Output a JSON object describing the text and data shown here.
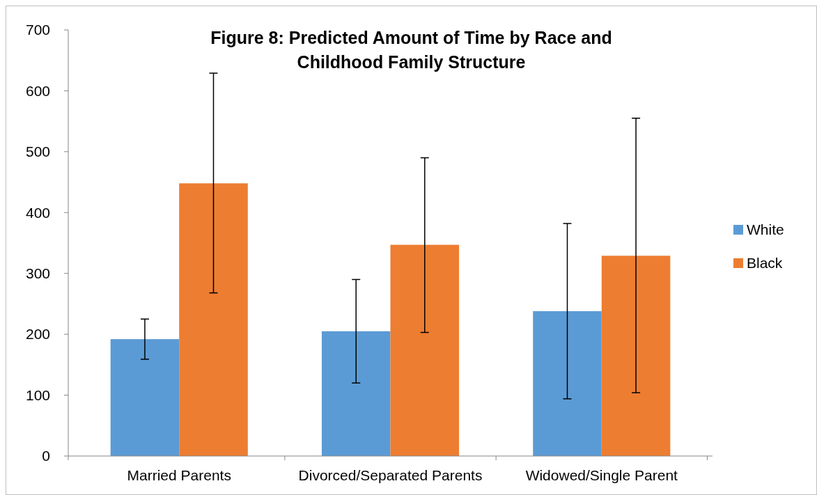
{
  "chart_data": {
    "type": "bar",
    "title": "Figure 8: Predicted Amount of Time by Race and Childhood Family Structure",
    "categories": [
      "Married Parents",
      "Divorced/Separated Parents",
      "Widowed/Single Parent"
    ],
    "series": [
      {
        "name": "White",
        "color": "#5b9bd5",
        "values": [
          192,
          205,
          238
        ],
        "errors": [
          [
            159,
            225
          ],
          [
            120,
            290
          ],
          [
            94,
            382
          ]
        ]
      },
      {
        "name": "Black",
        "color": "#ed7d31",
        "values": [
          448,
          347,
          329
        ],
        "errors": [
          [
            268,
            629
          ],
          [
            203,
            490
          ],
          [
            104,
            555
          ]
        ]
      }
    ],
    "ylim": [
      0,
      700
    ],
    "yticks": [
      0,
      100,
      200,
      300,
      400,
      500,
      600,
      700
    ],
    "grid": false,
    "legend": "right"
  }
}
